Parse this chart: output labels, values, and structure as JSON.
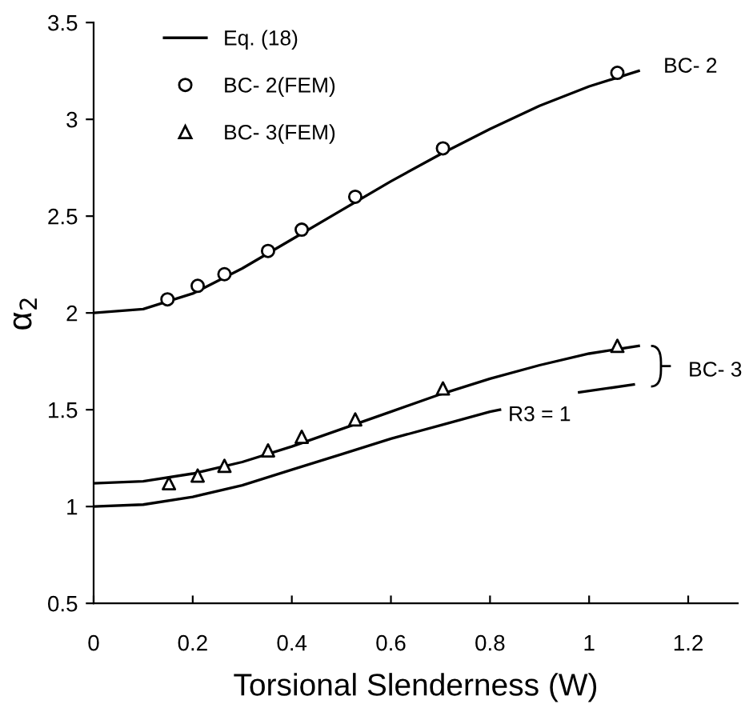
{
  "chart_data": {
    "type": "line",
    "xlabel": "Torsional Slenderness (W)",
    "ylabel": "α$_{2}$",
    "xlim": [
      0,
      1.3
    ],
    "ylim": [
      0.5,
      3.5
    ],
    "xticks": [
      0,
      0.2,
      0.4,
      0.6,
      0.8,
      1,
      1.2
    ],
    "yticks": [
      0.5,
      1,
      1.5,
      2,
      2.5,
      3,
      3.5
    ],
    "grid": false,
    "legend": "top left",
    "series": [
      {
        "name": "Eq. (18)",
        "color": "#000000",
        "marker": "none",
        "line_style": "solid",
        "x": [
          0,
          0.1,
          0.2,
          0.3,
          0.4,
          0.5,
          0.6,
          0.7,
          0.8,
          0.9,
          1.0,
          1.1
        ],
        "values": [
          2.0,
          2.02,
          2.1,
          2.23,
          2.38,
          2.53,
          2.68,
          2.82,
          2.95,
          3.07,
          3.17,
          3.25
        ]
      },
      {
        "color": "#000000",
        "marker": "none",
        "line_style": "solid",
        "x": [
          0,
          0.1,
          0.2,
          0.3,
          0.4,
          0.5,
          0.6,
          0.7,
          0.8,
          0.9,
          1.0,
          1.1
        ],
        "values": [
          1.12,
          1.13,
          1.17,
          1.23,
          1.31,
          1.4,
          1.49,
          1.58,
          1.66,
          1.73,
          1.79,
          1.83
        ]
      },
      {
        "color": "#000000",
        "marker": "none",
        "line_style": "solid",
        "x": [
          0,
          0.1,
          0.2,
          0.3,
          0.4,
          0.5,
          0.6,
          0.7,
          0.8,
          0.82,
          0.9,
          0.98,
          1.09
        ],
        "values": [
          1.0,
          1.01,
          1.05,
          1.11,
          1.19,
          1.27,
          1.35,
          1.42,
          1.49,
          1.5,
          null,
          1.59,
          1.63
        ]
      },
      {
        "name": "BC- 2(FEM)",
        "type": "scatter",
        "color": "#000000",
        "marker": "circle",
        "x": [
          0.149,
          0.21,
          0.264,
          0.352,
          0.42,
          0.528,
          0.705,
          1.057
        ],
        "values": [
          2.07,
          2.14,
          2.2,
          2.32,
          2.43,
          2.6,
          2.85,
          3.24
        ]
      },
      {
        "name": "BC- 3(FEM)",
        "type": "scatter",
        "color": "#000000",
        "marker": "triangle",
        "x": [
          0.152,
          0.21,
          0.264,
          0.352,
          0.42,
          0.528,
          0.705,
          1.057
        ],
        "values": [
          1.12,
          1.16,
          1.21,
          1.29,
          1.36,
          1.45,
          1.61,
          1.83
        ]
      }
    ],
    "annotations": [
      "BC- 2",
      "BC- 3",
      "R3 = 1"
    ]
  }
}
